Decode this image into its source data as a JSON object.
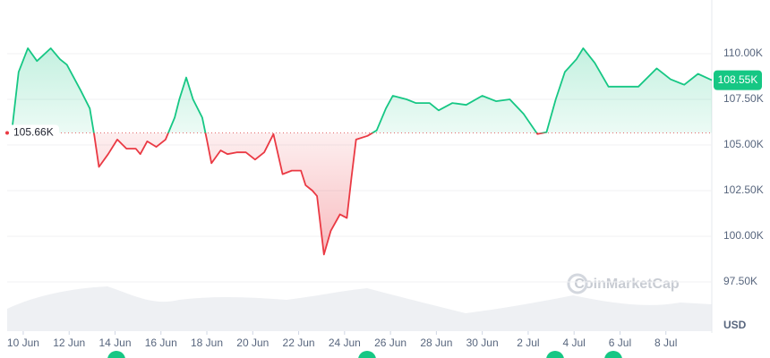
{
  "chart_data": {
    "type": "line",
    "unit_label": "USD",
    "watermark": "CoinMarketCap",
    "up_color": "#16c784",
    "down_color": "#ea3943",
    "reference": {
      "value": 105.66,
      "label": "105.66K"
    },
    "last_price": {
      "value": 108.55,
      "label": "108.55K"
    },
    "xlim": [
      9.3,
      40
    ],
    "xticks": [
      {
        "value": 10,
        "label": "10 Jun"
      },
      {
        "value": 12,
        "label": "12 Jun"
      },
      {
        "value": 14,
        "label": "14 Jun"
      },
      {
        "value": 16,
        "label": "16 Jun"
      },
      {
        "value": 18,
        "label": "18 Jun"
      },
      {
        "value": 20,
        "label": "20 Jun"
      },
      {
        "value": 22,
        "label": "22 Jun"
      },
      {
        "value": 24,
        "label": "24 Jun"
      },
      {
        "value": 26,
        "label": "26 Jun"
      },
      {
        "value": 28,
        "label": "28 Jun"
      },
      {
        "value": 30,
        "label": "30 Jun"
      },
      {
        "value": 32,
        "label": "2 Jul"
      },
      {
        "value": 34,
        "label": "4 Jul"
      },
      {
        "value": 36,
        "label": "6 Jul"
      },
      {
        "value": 38,
        "label": "8 Jul"
      }
    ],
    "ylim": [
      94.8,
      112.7
    ],
    "yticks": [
      {
        "value": 97.5,
        "label": "97.50K"
      },
      {
        "value": 100,
        "label": "100.00K"
      },
      {
        "value": 102.5,
        "label": "102.50K"
      },
      {
        "value": 105,
        "label": "105.00K"
      },
      {
        "value": 107.5,
        "label": "107.50K"
      },
      {
        "value": 110,
        "label": "110.00K"
      }
    ],
    "grid": true,
    "x": [
      9.5,
      9.8,
      10.2,
      10.6,
      11.2,
      11.6,
      11.9,
      12.5,
      12.9,
      13.1,
      13.3,
      13.7,
      14.1,
      14.5,
      14.9,
      15.1,
      15.4,
      15.8,
      16.2,
      16.6,
      16.8,
      17.1,
      17.4,
      17.8,
      18.0,
      18.2,
      18.6,
      18.9,
      19.3,
      19.7,
      20.1,
      20.5,
      20.9,
      21.1,
      21.3,
      21.7,
      22.1,
      22.3,
      22.6,
      22.8,
      23.1,
      23.4,
      23.8,
      24.1,
      24.3,
      24.5,
      25.0,
      25.4,
      25.8,
      26.1,
      26.7,
      27.1,
      27.7,
      28.1,
      28.7,
      29.3,
      30.0,
      30.6,
      31.2,
      31.8,
      32.4,
      32.8,
      33.2,
      33.6,
      34.1,
      34.4,
      34.9,
      35.5,
      36.3,
      36.8,
      37.6,
      38.2,
      38.8,
      39.4,
      40.0
    ],
    "values": [
      105.7,
      109,
      110.3,
      109.6,
      110.3,
      109.7,
      109.4,
      108,
      107,
      105.5,
      103.8,
      104.5,
      105.3,
      104.8,
      104.8,
      104.5,
      105.2,
      104.9,
      105.3,
      106.5,
      107.5,
      108.7,
      107.5,
      106.5,
      105.3,
      104,
      104.7,
      104.5,
      104.6,
      104.6,
      104.2,
      104.6,
      105.6,
      104.5,
      103.4,
      103.6,
      103.6,
      102.8,
      102.5,
      102.2,
      99,
      100.3,
      101.2,
      101,
      103.2,
      105.3,
      105.5,
      105.8,
      107,
      107.7,
      107.5,
      107.3,
      107.3,
      106.9,
      107.3,
      107.2,
      107.7,
      107.4,
      107.5,
      106.7,
      105.6,
      105.7,
      107.5,
      109,
      109.7,
      110.3,
      109.5,
      108.2,
      108.2,
      108.2,
      109.2,
      108.6,
      108.3,
      108.9,
      108.55
    ]
  }
}
